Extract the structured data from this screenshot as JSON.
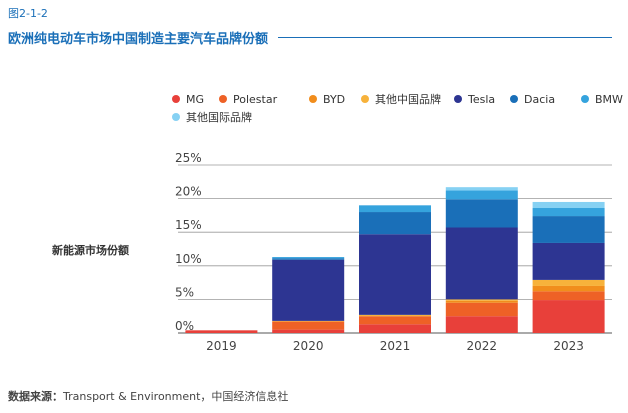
{
  "figure_number": "图2-1-2",
  "source_label": "数据来源：",
  "source_text": "Transport & Environment，中国经济信息社",
  "chart_data": {
    "type": "bar",
    "stacked": true,
    "title": "欧洲纯电动车市场中国制造主要汽车品牌份额",
    "ylabel": "新能源市场份额",
    "xlabel": "",
    "categories": [
      "2019",
      "2020",
      "2021",
      "2022",
      "2023"
    ],
    "ylim": [
      0,
      25
    ],
    "yticks": [
      "0%",
      "5%",
      "10%",
      "15%",
      "20%",
      "25%"
    ],
    "grid": true,
    "legend_position": "top",
    "series": [
      {
        "name": "MG",
        "color": "#e8403a",
        "values": [
          0.4,
          0.5,
          1.3,
          2.5,
          4.9
        ]
      },
      {
        "name": "Polestar",
        "color": "#ee6126",
        "values": [
          0,
          1.2,
          1.2,
          2.0,
          1.3
        ]
      },
      {
        "name": "BYD",
        "color": "#f18d1c",
        "values": [
          0,
          0,
          0,
          0.3,
          0.8
        ]
      },
      {
        "name": "其他中国品牌",
        "color": "#f7b23b",
        "values": [
          0,
          0.1,
          0.2,
          0.2,
          0.9
        ]
      },
      {
        "name": "Tesla",
        "color": "#2d3592",
        "values": [
          0,
          9.1,
          12.0,
          10.7,
          5.5
        ]
      },
      {
        "name": "Dacia",
        "color": "#1a6fb8",
        "values": [
          0,
          0.2,
          3.3,
          4.2,
          4.0
        ]
      },
      {
        "name": "BMW",
        "color": "#35a3dd",
        "values": [
          0,
          0.2,
          1.0,
          1.3,
          1.2
        ]
      },
      {
        "name": "其他国际品牌",
        "color": "#86d1f3",
        "values": [
          0,
          0,
          0,
          0.5,
          0.9
        ]
      }
    ]
  }
}
